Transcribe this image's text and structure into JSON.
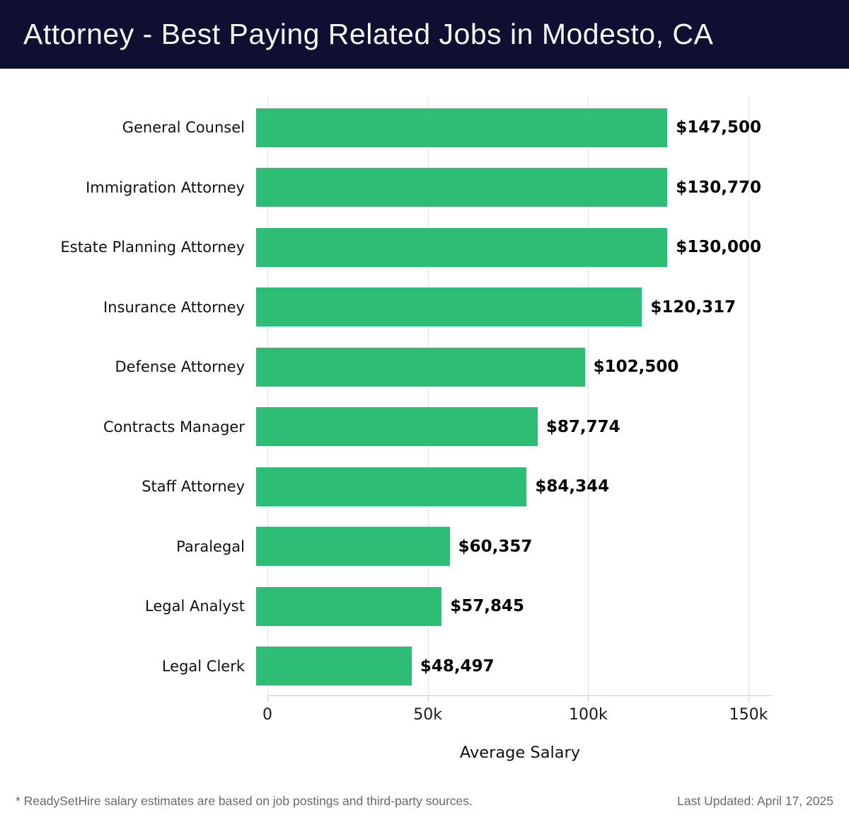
{
  "header": {
    "title": "Attorney - Best Paying Related Jobs in Modesto, CA"
  },
  "chart_data": {
    "type": "bar",
    "orientation": "horizontal",
    "title": "Attorney - Best Paying Related Jobs in Modesto, CA",
    "categories": [
      "General Counsel",
      "Immigration Attorney",
      "Estate Planning Attorney",
      "Insurance Attorney",
      "Defense Attorney",
      "Contracts Manager",
      "Staff Attorney",
      "Paralegal",
      "Legal Analyst",
      "Legal Clerk"
    ],
    "values": [
      147500,
      130770,
      130000,
      120317,
      102500,
      87774,
      84344,
      60357,
      57845,
      48497
    ],
    "value_labels": [
      "$147,500",
      "$130,770",
      "$130,000",
      "$120,317",
      "$102,500",
      "$87,774",
      "$84,344",
      "$60,357",
      "$57,845",
      "$48,497"
    ],
    "xlabel": "Average Salary",
    "ylabel": "",
    "xlim": [
      0,
      157500
    ],
    "xticks": [
      {
        "value": 0,
        "label": "0"
      },
      {
        "value": 50000,
        "label": "50k"
      },
      {
        "value": 100000,
        "label": "100k"
      },
      {
        "value": 150000,
        "label": "150k"
      }
    ],
    "grid": "vertical",
    "legend": "none",
    "bar_color": "#2ebd74"
  },
  "colors": {
    "header_background": "#0f0f31",
    "title_text": "#f7f7f7",
    "bar": "#2ebd74",
    "gridline": "#e3e3e3",
    "axis_line": "#c9c9c9",
    "label_text": "#111111",
    "footer_text": "#696969"
  },
  "footer": {
    "disclaimer": "* ReadySetHire salary estimates are based on job postings and third-party sources.",
    "last_updated": "Last Updated: April 17, 2025"
  }
}
